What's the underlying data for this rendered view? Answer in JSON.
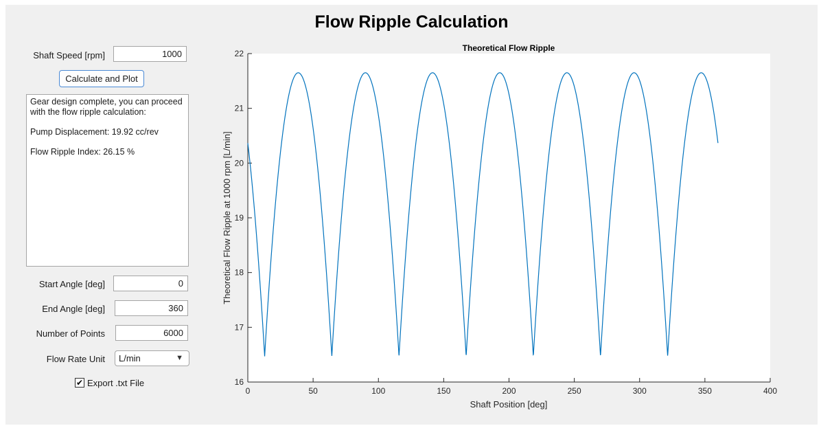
{
  "app": {
    "title": "Flow Ripple Calculation"
  },
  "controls": {
    "shaft_speed_label": "Shaft Speed [rpm]",
    "shaft_speed_value": "1000",
    "calculate_label": "Calculate and Plot",
    "start_angle_label": "Start Angle [deg]",
    "start_angle_value": "0",
    "end_angle_label": "End Angle [deg]",
    "end_angle_value": "360",
    "num_points_label": "Number of Points",
    "num_points_value": "6000",
    "flow_unit_label": "Flow Rate Unit",
    "flow_unit_value": "L/min",
    "export_label": "Export .txt File",
    "export_checked": true
  },
  "output": {
    "line1": "Gear design complete, you can proceed with the flow ripple calculation:",
    "line2": "Pump Displacement: 19.92 cc/rev",
    "line3": "Flow Ripple Index: 26.15 %"
  },
  "chart_data": {
    "type": "line",
    "title": "Theoretical Flow Ripple",
    "xlabel": "Shaft Position [deg]",
    "ylabel": "Theoretical Flow Ripple at 1000 rpm [L/min]",
    "xlim": [
      0,
      400
    ],
    "ylim": [
      16,
      22
    ],
    "xticks": [
      0,
      50,
      100,
      150,
      200,
      250,
      300,
      350,
      400
    ],
    "yticks": [
      16,
      17,
      18,
      19,
      20,
      21,
      22
    ],
    "grid": false,
    "line_color": "#0072bd",
    "period_deg": 51.43,
    "x_min_first": 12.9,
    "x_end": 360,
    "y_max": 21.65,
    "y_min": 16.47,
    "y_start": 20.4,
    "y_end": 20.38,
    "minima_x": [
      12.9,
      64.3,
      115.7,
      167.2,
      218.6,
      270.0,
      321.4
    ],
    "maxima_x": [
      38.6,
      90.0,
      141.4,
      192.9,
      244.3,
      295.7,
      347.1
    ]
  }
}
